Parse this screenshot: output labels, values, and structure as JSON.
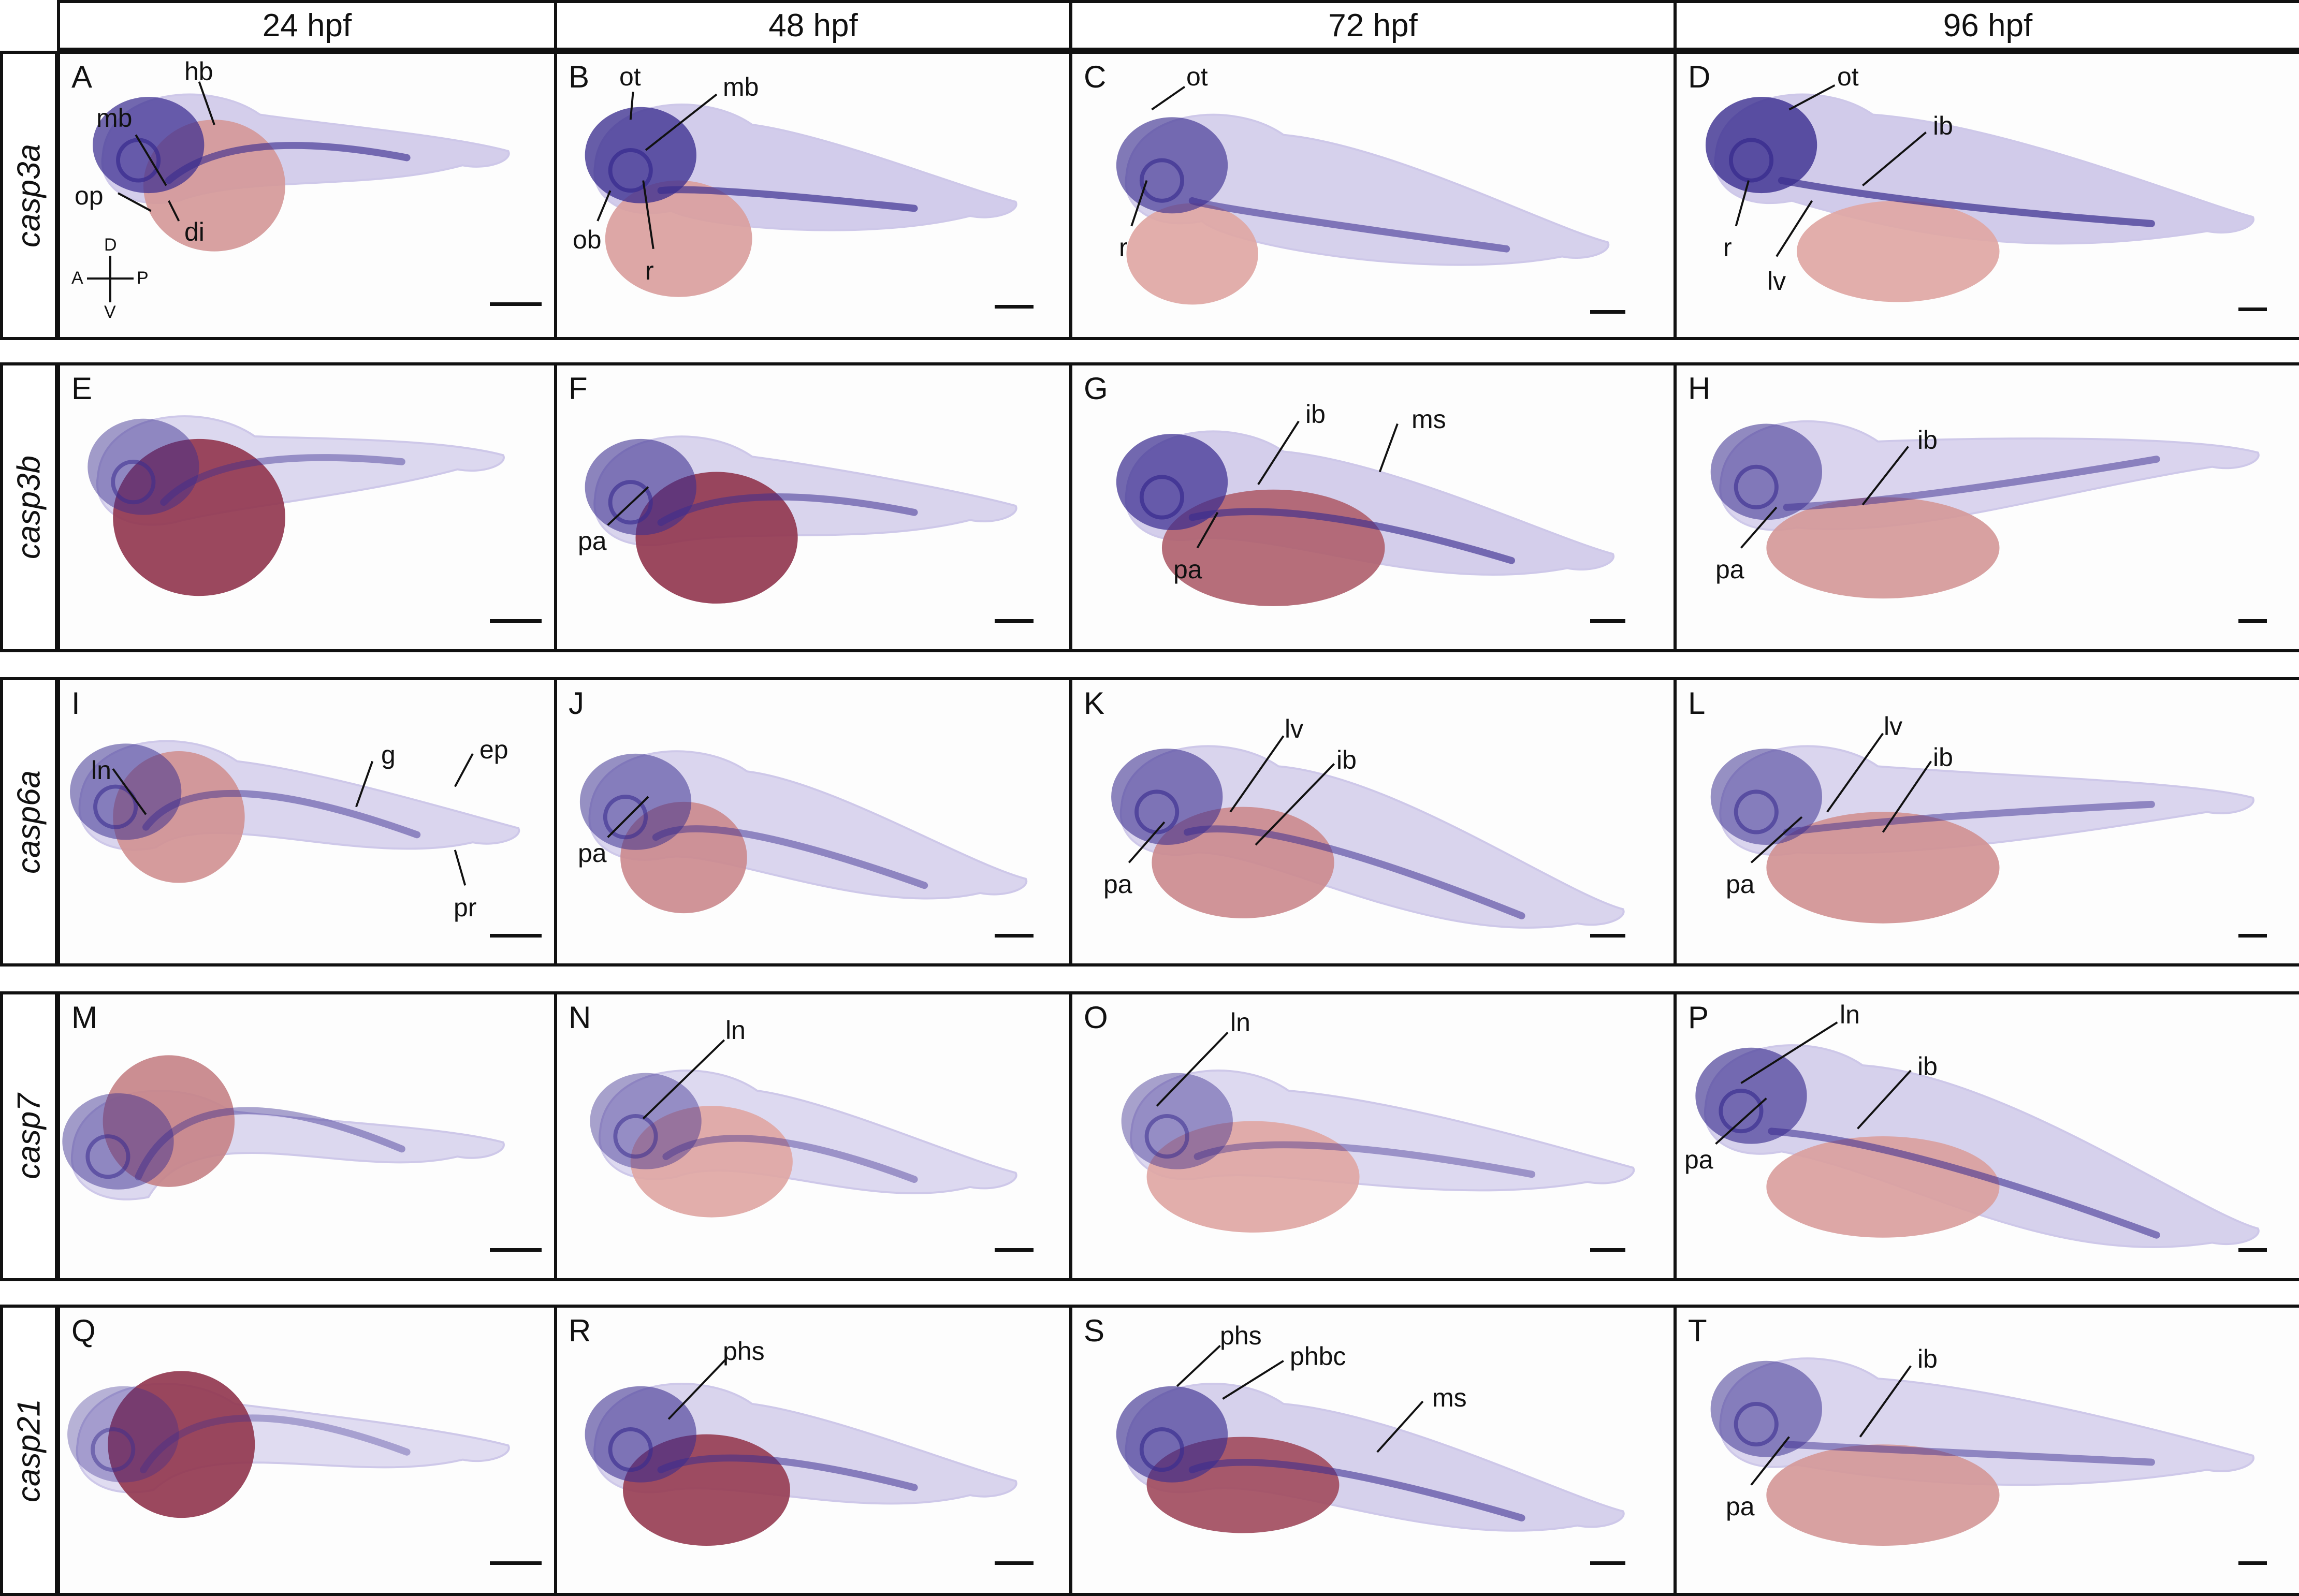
{
  "columns": [
    "24 hpf",
    "48 hpf",
    "72 hpf",
    "96 hpf"
  ],
  "rows": [
    "casp3a",
    "casp3b",
    "casp6a",
    "casp7",
    "casp21"
  ],
  "orientation": {
    "d": "D",
    "v": "V",
    "a": "A",
    "p": "P"
  },
  "colors": {
    "stain": "#3a2d8f",
    "yolk": "#e8b5ae",
    "yolk_dark": "#8a2a45",
    "tissue": "#c9c2e6",
    "border": "#111111"
  },
  "panels": [
    {
      "letter": "A",
      "labels": [
        "hb",
        "mb",
        "op",
        "di"
      ]
    },
    {
      "letter": "B",
      "labels": [
        "ot",
        "mb",
        "ob",
        "r"
      ]
    },
    {
      "letter": "C",
      "labels": [
        "ot",
        "r"
      ]
    },
    {
      "letter": "D",
      "labels": [
        "ot",
        "ib",
        "r",
        "lv"
      ]
    },
    {
      "letter": "E",
      "labels": []
    },
    {
      "letter": "F",
      "labels": [
        "pa"
      ]
    },
    {
      "letter": "G",
      "labels": [
        "ib",
        "ms",
        "pa"
      ]
    },
    {
      "letter": "H",
      "labels": [
        "ib",
        "pa"
      ]
    },
    {
      "letter": "I",
      "labels": [
        "ln",
        "g",
        "ep",
        "pr"
      ]
    },
    {
      "letter": "J",
      "labels": [
        "pa"
      ]
    },
    {
      "letter": "K",
      "labels": [
        "lv",
        "ib",
        "pa"
      ]
    },
    {
      "letter": "L",
      "labels": [
        "lv",
        "ib",
        "pa"
      ]
    },
    {
      "letter": "M",
      "labels": []
    },
    {
      "letter": "N",
      "labels": [
        "ln"
      ]
    },
    {
      "letter": "O",
      "labels": [
        "ln"
      ]
    },
    {
      "letter": "P",
      "labels": [
        "ln",
        "ib",
        "pa"
      ]
    },
    {
      "letter": "Q",
      "labels": []
    },
    {
      "letter": "R",
      "labels": [
        "phs"
      ]
    },
    {
      "letter": "S",
      "labels": [
        "phs",
        "phbc",
        "ms"
      ]
    },
    {
      "letter": "T",
      "labels": [
        "ib",
        "pa"
      ]
    }
  ]
}
